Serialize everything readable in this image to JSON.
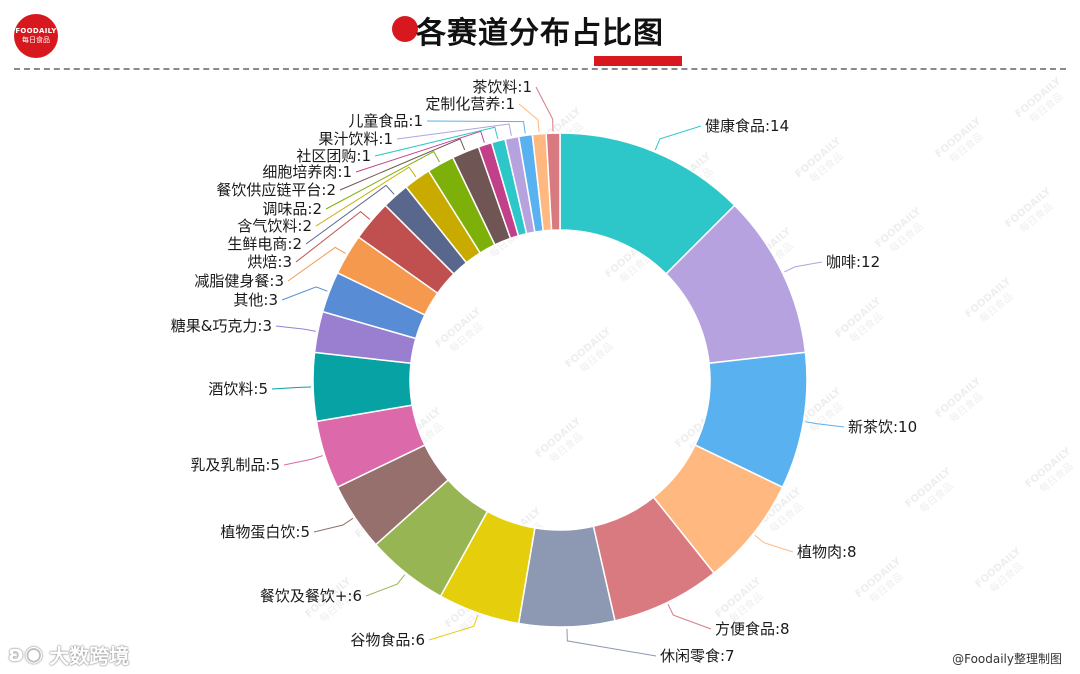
{
  "logo": {
    "en": "FOODAILY",
    "cn": "每日食品",
    "color": "#d7191f"
  },
  "title": "各赛道分布占比图",
  "accent_color": "#d7191f",
  "watermark_text": "FOODAILY 每日食品",
  "bottom_watermark": {
    "icon": "weibo-icon",
    "text": "大数跨境"
  },
  "credit": "@Foodaily整理制图",
  "chart_data": {
    "type": "pie",
    "style": "donut",
    "title": "各赛道分布占比图",
    "label_format": "name:value",
    "slices": [
      {
        "name": "健康食品",
        "value": 14,
        "color": "#2ec7c9"
      },
      {
        "name": "咖啡",
        "value": 12,
        "color": "#b6a2de"
      },
      {
        "name": "新茶饮",
        "value": 10,
        "color": "#5ab1ef"
      },
      {
        "name": "植物肉",
        "value": 8,
        "color": "#ffb980"
      },
      {
        "name": "方便食品",
        "value": 8,
        "color": "#d87a80"
      },
      {
        "name": "休闲零食",
        "value": 7,
        "color": "#8d98b3"
      },
      {
        "name": "谷物食品",
        "value": 6,
        "color": "#e5cf0d"
      },
      {
        "name": "餐饮及餐饮+",
        "value": 6,
        "color": "#97b552"
      },
      {
        "name": "植物蛋白饮",
        "value": 5,
        "color": "#95706d"
      },
      {
        "name": "乳及乳制品",
        "value": 5,
        "color": "#dc69aa"
      },
      {
        "name": "酒饮料",
        "value": 5,
        "color": "#07a2a4"
      },
      {
        "name": "糖果&巧克力",
        "value": 3,
        "color": "#9a7fd1"
      },
      {
        "name": "其他",
        "value": 3,
        "color": "#588dd5"
      },
      {
        "name": "减脂健身餐",
        "value": 3,
        "color": "#f5994e"
      },
      {
        "name": "烘焙",
        "value": 3,
        "color": "#c05050"
      },
      {
        "name": "生鲜电商",
        "value": 2,
        "color": "#59678c"
      },
      {
        "name": "含气饮料",
        "value": 2,
        "color": "#c9ab00"
      },
      {
        "name": "调味品",
        "value": 2,
        "color": "#7eb00a"
      },
      {
        "name": "餐饮供应链平台",
        "value": 2,
        "color": "#6f5553"
      },
      {
        "name": "细胞培养肉",
        "value": 1,
        "color": "#c14089"
      },
      {
        "name": "社区团购",
        "value": 1,
        "color": "#2ec7c9"
      },
      {
        "name": "果汁饮料",
        "value": 1,
        "color": "#b6a2de"
      },
      {
        "name": "儿童食品",
        "value": 1,
        "color": "#5ab1ef"
      },
      {
        "name": "定制化营养",
        "value": 1,
        "color": "#ffb980"
      },
      {
        "name": "茶饮料",
        "value": 1,
        "color": "#d87a80"
      }
    ]
  }
}
